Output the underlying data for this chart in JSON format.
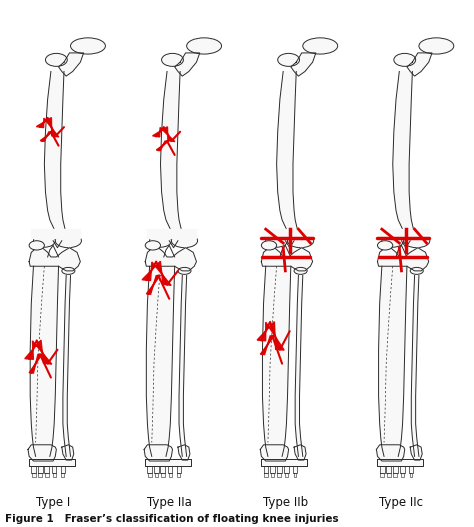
{
  "title": "Figure 1",
  "caption": "Fraser’s classification of floating knee injuries",
  "labels": [
    "Type I",
    "Type IIa",
    "Type IIb",
    "Type IIc"
  ],
  "background_color": "#ffffff",
  "bone_fill": "#f8f8f8",
  "bone_edge": "#2a2a2a",
  "fracture_color": "#dd0000",
  "text_color": "#111111",
  "label_fontsize": 8.5,
  "caption_fontsize": 7.5,
  "bold_caption": true,
  "figsize": [
    4.74,
    5.27
  ],
  "dpi": 100
}
